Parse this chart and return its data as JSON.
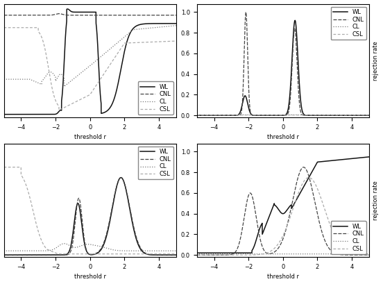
{
  "xlim": [
    -5,
    5
  ],
  "ylim": [
    0,
    1.05
  ],
  "xlabel": "threshold r",
  "ylabel_right": "rejection rate",
  "legend_labels": [
    "WL",
    "CNL",
    "CL",
    "CSL"
  ],
  "xticks": [
    -4,
    -2,
    0,
    2,
    4
  ],
  "wl_color": "#111111",
  "cnl_color": "#444444",
  "cl_color": "#777777",
  "csl_color": "#aaaaaa",
  "wl_ls": "-",
  "cnl_ls": "dashed_dense",
  "cl_ls": "dotted",
  "csl_ls": "dashed_sparse",
  "linewidth": 0.9,
  "fontsize_tick": 6,
  "fontsize_label": 6,
  "fontsize_legend": 6
}
